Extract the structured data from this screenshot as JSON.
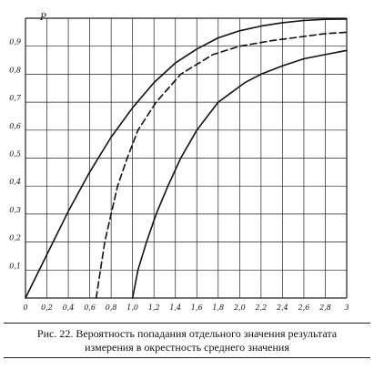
{
  "chart_data": {
    "type": "line",
    "ylabel": "P",
    "xlim": [
      0,
      3
    ],
    "ylim": [
      0,
      1
    ],
    "grid": true,
    "x_ticks": [
      "0",
      "0,2",
      "0,4",
      "0,6",
      "0,8",
      "1,0",
      "1,2",
      "1,4",
      "1,6",
      "1,8",
      "2,0",
      "2,2",
      "2,4",
      "2,6",
      "2,8",
      "3"
    ],
    "y_ticks": [
      "0,1",
      "0,2",
      "0,3",
      "0,4",
      "0,5",
      "0,6",
      "0,7",
      "0,8",
      "0,9"
    ],
    "series": [
      {
        "style": "solid",
        "points": [
          [
            0,
            0
          ],
          [
            0.2,
            0.155
          ],
          [
            0.4,
            0.31
          ],
          [
            0.6,
            0.45
          ],
          [
            0.8,
            0.575
          ],
          [
            1.0,
            0.68
          ],
          [
            1.2,
            0.77
          ],
          [
            1.4,
            0.84
          ],
          [
            1.6,
            0.89
          ],
          [
            1.8,
            0.93
          ],
          [
            2.0,
            0.955
          ],
          [
            2.2,
            0.972
          ],
          [
            2.4,
            0.984
          ],
          [
            2.6,
            0.992
          ],
          [
            2.8,
            0.996
          ],
          [
            3.0,
            0.997
          ]
        ]
      },
      {
        "style": "dashed",
        "points": [
          [
            0.66,
            0
          ],
          [
            0.7,
            0.1
          ],
          [
            0.74,
            0.2
          ],
          [
            0.8,
            0.3
          ],
          [
            0.86,
            0.4
          ],
          [
            0.95,
            0.5
          ],
          [
            1.05,
            0.6
          ],
          [
            1.22,
            0.7
          ],
          [
            1.45,
            0.8
          ],
          [
            1.75,
            0.87
          ],
          [
            2.0,
            0.9
          ],
          [
            2.3,
            0.92
          ],
          [
            2.6,
            0.935
          ],
          [
            2.8,
            0.945
          ],
          [
            3.0,
            0.95
          ]
        ]
      },
      {
        "style": "solid",
        "points": [
          [
            1.0,
            0
          ],
          [
            1.05,
            0.1
          ],
          [
            1.13,
            0.2
          ],
          [
            1.22,
            0.3
          ],
          [
            1.33,
            0.4
          ],
          [
            1.45,
            0.5
          ],
          [
            1.6,
            0.6
          ],
          [
            1.8,
            0.7
          ],
          [
            2.05,
            0.77
          ],
          [
            2.2,
            0.8
          ],
          [
            2.4,
            0.83
          ],
          [
            2.6,
            0.855
          ],
          [
            2.8,
            0.87
          ],
          [
            3.0,
            0.885
          ]
        ]
      }
    ]
  },
  "caption": {
    "line1": "Рис. 22. Вероятность попадания отдельного значения результата",
    "line2": "измерения в окрестность среднего значения"
  }
}
